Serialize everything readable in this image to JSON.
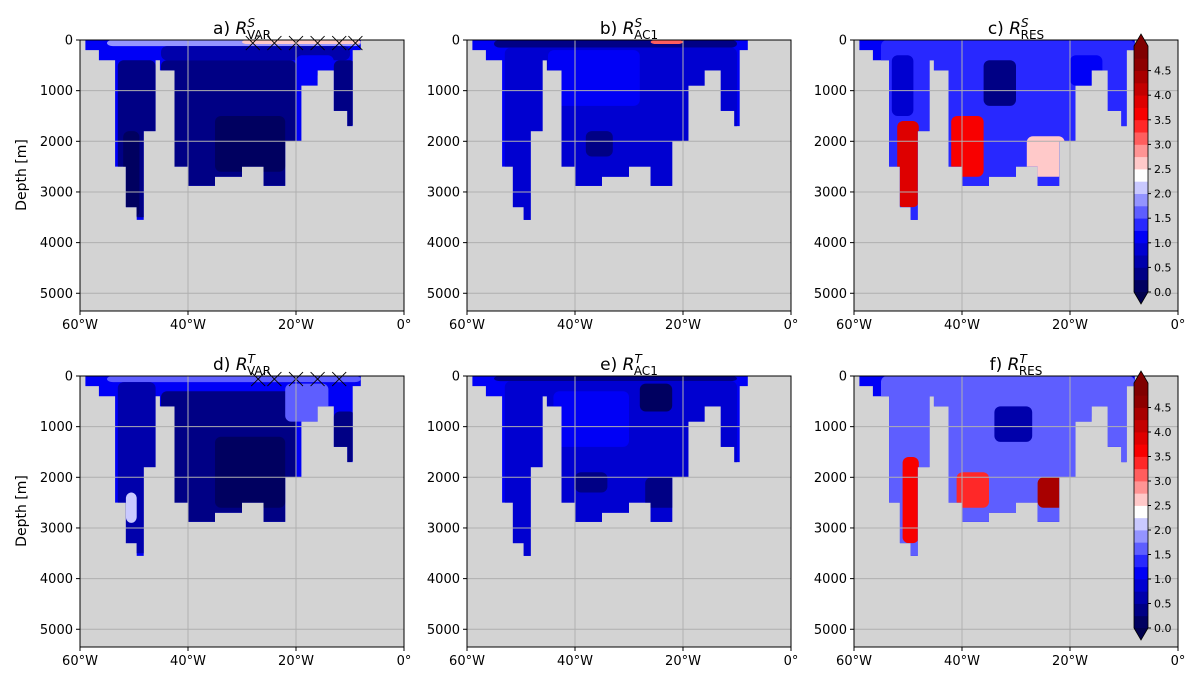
{
  "chart_data": {
    "type": "heatmap",
    "y_axis_label": "Depth [m]",
    "x_ticks": [
      "60°W",
      "40°W",
      "20°W",
      "0°"
    ],
    "x_tick_values": [
      -60,
      -40,
      -20,
      0
    ],
    "xlim": [
      -60,
      0
    ],
    "y_ticks": [
      "0",
      "1000",
      "2000",
      "3000",
      "4000",
      "5000"
    ],
    "y_tick_values": [
      0,
      1000,
      2000,
      3000,
      4000,
      5000
    ],
    "ylim": [
      5350,
      0
    ],
    "grid": true,
    "land_color": "#d3d3d3",
    "colorbar": {
      "cmap": "seismic-like blue-white-red",
      "extend": "both",
      "levels": [
        0.0,
        0.25,
        0.5,
        0.75,
        1.0,
        1.25,
        1.5,
        1.75,
        2.0,
        2.25,
        2.5,
        2.75,
        3.0,
        3.25,
        3.5,
        3.75,
        4.0,
        4.25,
        4.5,
        4.75
      ],
      "tick_labels": [
        "0.0",
        "0.5",
        "1.0",
        "1.5",
        "2.0",
        "2.5",
        "3.0",
        "3.5",
        "4.0",
        "4.5"
      ],
      "tick_values": [
        0.0,
        0.5,
        1.0,
        1.5,
        2.0,
        2.5,
        3.0,
        3.5,
        4.0,
        4.5
      ]
    },
    "ocean_sections": [
      {
        "lon0": -59,
        "lon1": -56.5,
        "depth": 200
      },
      {
        "lon0": -56.5,
        "lon1": -53.5,
        "depth": 400
      },
      {
        "lon0": -53.5,
        "lon1": -51.5,
        "depth": 2500
      },
      {
        "lon0": -51.5,
        "lon1": -49.5,
        "depth": 3300
      },
      {
        "lon0": -49.5,
        "lon1": -48.2,
        "depth": 3550
      },
      {
        "lon0": -48.2,
        "lon1": -46,
        "depth": 1800
      },
      {
        "lon0": -46,
        "lon1": -45.2,
        "depth": 400
      },
      {
        "lon0": -45.2,
        "lon1": -42.5,
        "depth": 600
      },
      {
        "lon0": -42.5,
        "lon1": -40,
        "depth": 2500
      },
      {
        "lon0": -40,
        "lon1": -35,
        "depth": 2880
      },
      {
        "lon0": -35,
        "lon1": -30,
        "depth": 2700
      },
      {
        "lon0": -30,
        "lon1": -26,
        "depth": 2500
      },
      {
        "lon0": -26,
        "lon1": -22,
        "depth": 2880
      },
      {
        "lon0": -22,
        "lon1": -19,
        "depth": 2000
      },
      {
        "lon0": -19,
        "lon1": -16,
        "depth": 900
      },
      {
        "lon0": -16,
        "lon1": -13,
        "depth": 600
      },
      {
        "lon0": -13,
        "lon1": -10.5,
        "depth": 1400
      },
      {
        "lon0": -10.5,
        "lon1": -9.5,
        "depth": 1700
      },
      {
        "lon0": -9.5,
        "lon1": -8,
        "depth": 200
      }
    ],
    "panels": [
      {
        "id": "a",
        "title_prefix": "a) ",
        "base": "R",
        "sup": "S",
        "sub": "VAR",
        "values": [
          {
            "lon0": -55,
            "lon1": -8,
            "d0": 0,
            "d1": 120,
            "v": 1.9
          },
          {
            "lon0": -45,
            "lon1": -10,
            "d0": 120,
            "d1": 400,
            "v": 0.7
          },
          {
            "lon0": -53,
            "lon1": -46,
            "d0": 400,
            "d1": 3500,
            "v": 0.45
          },
          {
            "lon0": -52,
            "lon1": -49,
            "d0": 1800,
            "d1": 3500,
            "v": 0.1
          },
          {
            "lon0": -45,
            "lon1": -20,
            "d0": 400,
            "d1": 2880,
            "v": 0.35
          },
          {
            "lon0": -35,
            "lon1": -22,
            "d0": 1500,
            "d1": 2600,
            "v": 0.1
          },
          {
            "lon0": -20,
            "lon1": -13,
            "d0": 300,
            "d1": 700,
            "v": 1.1
          },
          {
            "lon0": -13,
            "lon1": -9,
            "d0": 400,
            "d1": 1700,
            "v": 0.3
          },
          {
            "lon0": -30,
            "lon1": -8,
            "d0": 0,
            "d1": 80,
            "v": 2.6
          }
        ],
        "hatch": [
          -28,
          -24,
          -20,
          -16,
          -12,
          -9
        ]
      },
      {
        "id": "b",
        "title_prefix": "b) ",
        "base": "R",
        "sup": "S",
        "sub": "AC1",
        "values": [
          {
            "lon0": -55,
            "lon1": -10,
            "d0": 0,
            "d1": 150,
            "v": 0.4
          },
          {
            "lon0": -53,
            "lon1": -10,
            "d0": 150,
            "d1": 3600,
            "v": 0.85
          },
          {
            "lon0": -45,
            "lon1": -28,
            "d0": 200,
            "d1": 1300,
            "v": 1.1
          },
          {
            "lon0": -38,
            "lon1": -33,
            "d0": 1800,
            "d1": 2300,
            "v": 0.45
          },
          {
            "lon0": -26,
            "lon1": -20,
            "d0": 0,
            "d1": 80,
            "v": 3.0
          }
        ],
        "hatch": []
      },
      {
        "id": "c",
        "title_prefix": "c) ",
        "base": "R",
        "sup": "S",
        "sub": "RES",
        "values": [
          {
            "lon0": -55,
            "lon1": -8,
            "d0": 0,
            "d1": 3600,
            "v": 1.4
          },
          {
            "lon0": -53,
            "lon1": -49,
            "d0": 300,
            "d1": 1500,
            "v": 0.85
          },
          {
            "lon0": -52,
            "lon1": -48,
            "d0": 1600,
            "d1": 3300,
            "v": 3.8
          },
          {
            "lon0": -42,
            "lon1": -36,
            "d0": 1500,
            "d1": 2700,
            "v": 3.6
          },
          {
            "lon0": -36,
            "lon1": -30,
            "d0": 400,
            "d1": 1300,
            "v": 0.4
          },
          {
            "lon0": -28,
            "lon1": -21,
            "d0": 1900,
            "d1": 2700,
            "v": 2.6
          },
          {
            "lon0": -20,
            "lon1": -14,
            "d0": 300,
            "d1": 900,
            "v": 1.1
          }
        ],
        "hatch": []
      },
      {
        "id": "d",
        "title_prefix": "d) ",
        "base": "R",
        "sup": "T",
        "sub": "VAR",
        "values": [
          {
            "lon0": -55,
            "lon1": -8,
            "d0": 0,
            "d1": 120,
            "v": 1.7
          },
          {
            "lon0": -53,
            "lon1": -46,
            "d0": 120,
            "d1": 3500,
            "v": 0.55
          },
          {
            "lon0": -51.5,
            "lon1": -49.5,
            "d0": 2300,
            "d1": 2900,
            "v": 2.1
          },
          {
            "lon0": -45,
            "lon1": -20,
            "d0": 300,
            "d1": 2880,
            "v": 0.4
          },
          {
            "lon0": -35,
            "lon1": -22,
            "d0": 1200,
            "d1": 2600,
            "v": 0.15
          },
          {
            "lon0": -22,
            "lon1": -14,
            "d0": 150,
            "d1": 900,
            "v": 1.7
          },
          {
            "lon0": -13,
            "lon1": -9,
            "d0": 700,
            "d1": 1700,
            "v": 0.35
          }
        ],
        "hatch": [
          -27,
          -24,
          -20,
          -16,
          -12
        ]
      },
      {
        "id": "e",
        "title_prefix": "e) ",
        "base": "R",
        "sup": "T",
        "sub": "AC1",
        "values": [
          {
            "lon0": -55,
            "lon1": -10,
            "d0": 0,
            "d1": 100,
            "v": 0.4
          },
          {
            "lon0": -53,
            "lon1": -10,
            "d0": 100,
            "d1": 3600,
            "v": 0.85
          },
          {
            "lon0": -44,
            "lon1": -30,
            "d0": 300,
            "d1": 1400,
            "v": 1.1
          },
          {
            "lon0": -28,
            "lon1": -22,
            "d0": 150,
            "d1": 700,
            "v": 0.2
          },
          {
            "lon0": -27,
            "lon1": -21,
            "d0": 2000,
            "d1": 2600,
            "v": 0.35
          },
          {
            "lon0": -40,
            "lon1": -34,
            "d0": 1900,
            "d1": 2300,
            "v": 0.45
          }
        ],
        "hatch": []
      },
      {
        "id": "f",
        "title_prefix": "f) ",
        "base": "R",
        "sup": "T",
        "sub": "RES",
        "values": [
          {
            "lon0": -55,
            "lon1": -8,
            "d0": 0,
            "d1": 3600,
            "v": 1.5
          },
          {
            "lon0": -51,
            "lon1": -48,
            "d0": 1600,
            "d1": 3300,
            "v": 3.5
          },
          {
            "lon0": -41,
            "lon1": -35,
            "d0": 1900,
            "d1": 2600,
            "v": 3.4
          },
          {
            "lon0": -34,
            "lon1": -27,
            "d0": 600,
            "d1": 1300,
            "v": 0.5
          },
          {
            "lon0": -26,
            "lon1": -21,
            "d0": 2000,
            "d1": 2600,
            "v": 4.3
          },
          {
            "lon0": -20,
            "lon1": -14,
            "d0": 150,
            "d1": 800,
            "v": 1.7
          }
        ],
        "hatch": []
      }
    ]
  }
}
